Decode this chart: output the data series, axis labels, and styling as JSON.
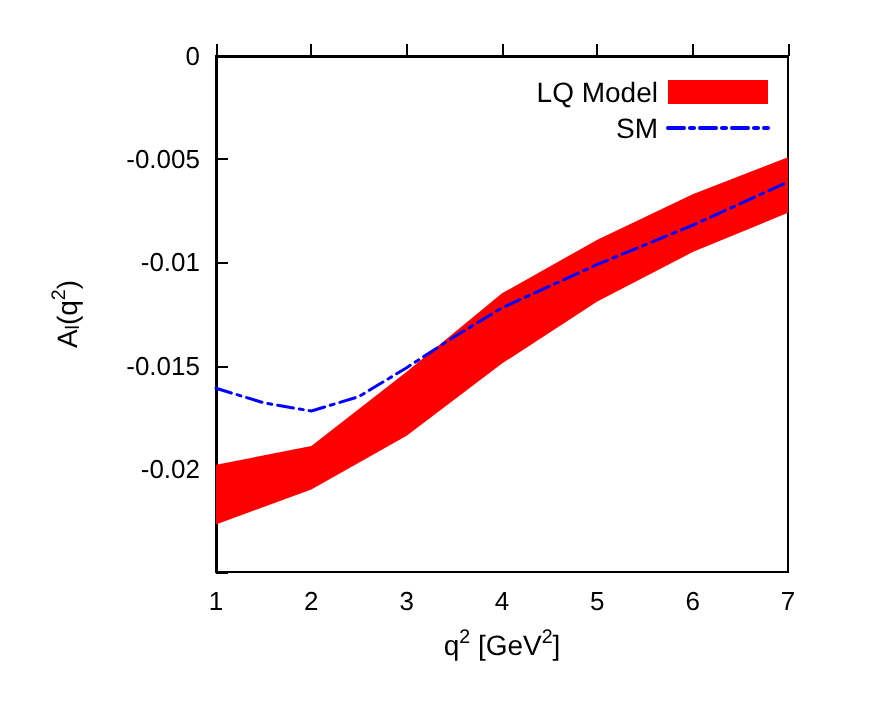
{
  "chart_data": {
    "type": "line",
    "xlabel": "q$^{2}$ [GeV$^{2}$]",
    "ylabel": "A$_{l}$(q$^{2}$)",
    "x": [
      1,
      2,
      3,
      4,
      5,
      6,
      7
    ],
    "series": [
      {
        "name": "LQ Model",
        "color": "#ff0000",
        "values": [
          null,
          null,
          null,
          null,
          null,
          null,
          null
        ],
        "lower": [
          -0.0227,
          -0.021,
          -0.0184,
          -0.0149,
          -0.0119,
          -0.0095,
          -0.0076
        ],
        "upper": [
          -0.0198,
          -0.0189,
          -0.0153,
          -0.0115,
          -0.0089,
          -0.0067,
          -0.0049
        ]
      },
      {
        "name": "SM",
        "color": "#0000ff",
        "line_style": "dashed",
        "x": [
          1,
          1.5,
          2,
          2.5,
          3,
          3.5,
          4,
          5,
          6,
          7
        ],
        "values": [
          -0.0161,
          -0.0168,
          -0.0172,
          -0.0165,
          -0.0151,
          -0.0136,
          -0.0122,
          -0.0101,
          -0.0082,
          -0.0061
        ]
      }
    ],
    "xlim": [
      1,
      7
    ],
    "xticks": [
      1,
      2,
      3,
      4,
      5,
      6,
      7
    ],
    "ylim": [
      -0.025,
      0
    ],
    "yticks": [
      {
        "value": -0.025,
        "label": null
      },
      -0.02,
      -0.015,
      -0.01,
      -0.005,
      0
    ],
    "grid": false,
    "legend": "top right",
    "marker": "none"
  }
}
